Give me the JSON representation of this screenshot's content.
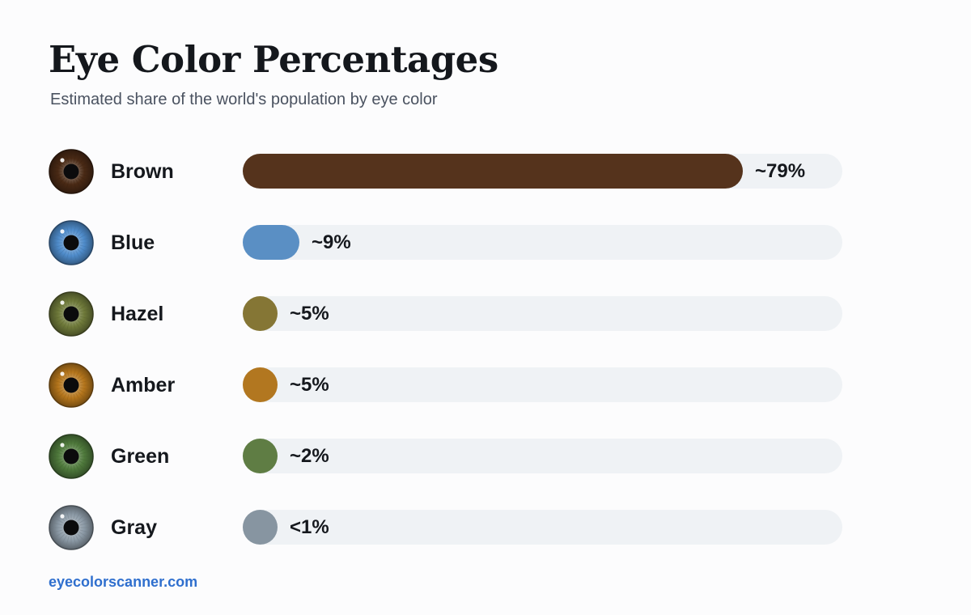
{
  "header": {
    "title": "Eye Color Percentages",
    "subtitle": "Estimated share of the world's population by eye color"
  },
  "footer": {
    "source": "eyecolorscanner.com"
  },
  "chart_data": {
    "type": "bar",
    "orientation": "horizontal",
    "title": "Eye Color Percentages",
    "subtitle": "Estimated share of the world's population by eye color",
    "categories": [
      "Brown",
      "Blue",
      "Hazel",
      "Amber",
      "Green",
      "Gray"
    ],
    "values": [
      79,
      9,
      5,
      5,
      2,
      1
    ],
    "value_labels": [
      "~79%",
      "~9%",
      "~5%",
      "~5%",
      "~2%",
      "<1%"
    ],
    "colors": [
      "#55331c",
      "#5a8fc4",
      "#857635",
      "#b27720",
      "#5f7d44",
      "#8795a1"
    ],
    "iris_colors": [
      "#4a2a15",
      "#4f8ccb",
      "#6f7a3a",
      "#b5761c",
      "#4f7a3c",
      "#8c9aa6"
    ],
    "xlim": [
      0,
      100
    ],
    "grid": false,
    "legend": "none",
    "xlabel": "",
    "ylabel": ""
  }
}
